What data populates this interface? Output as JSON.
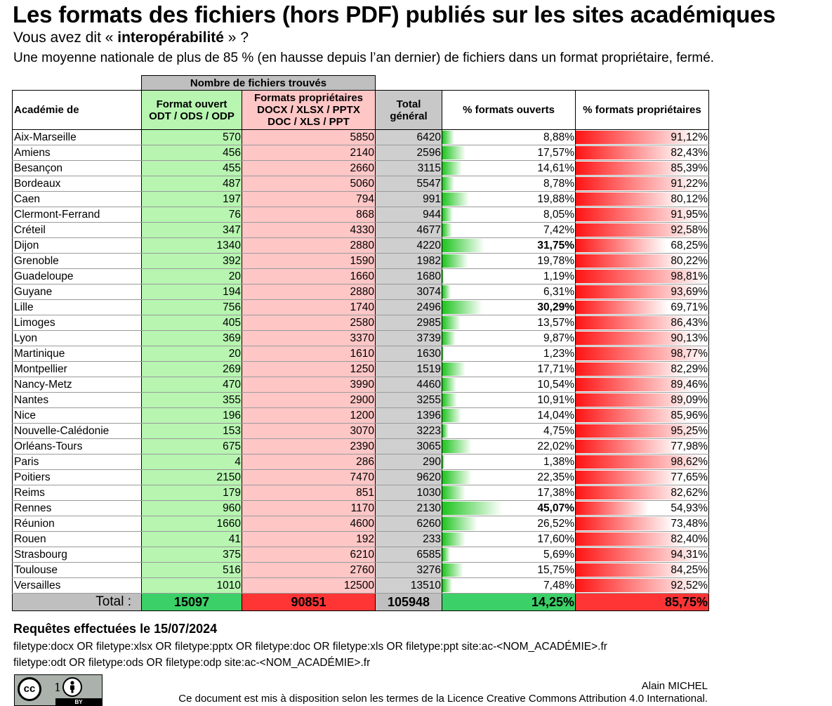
{
  "header": {
    "title": "Les formats des fichiers (hors PDF) publiés sur les sites académiques",
    "subtitle_pre": "Vous avez dit « ",
    "subtitle_bold": "interopérabilité",
    "subtitle_post": " » ?",
    "description": "Une moyenne nationale de plus de 85 % (en hausse depuis l’an dernier) de fichiers dans un format propriétaire, fermé."
  },
  "table": {
    "group_header": "Nombre de fichiers trouvés",
    "columns": {
      "academie": "Académie de",
      "open_1": "Format ouvert",
      "open_2": "ODT / ODS / ODP",
      "prop_1": "Formats propriétaires",
      "prop_2": "DOCX / XLSX / PPTX",
      "prop_3": "DOC / XLS / PPT",
      "total_1": "Total",
      "total_2": "général",
      "pct_open": "% formats ouverts",
      "pct_prop": "% formats propriétaires"
    },
    "rows": [
      {
        "name": "Aix-Marseille",
        "open": "570",
        "prop": "5850",
        "total": "6420",
        "pct_open": "8,88%",
        "pct_prop": "91,12%",
        "open_frac": 0.0888,
        "prop_frac": 0.9112,
        "highlight": false
      },
      {
        "name": "Amiens",
        "open": "456",
        "prop": "2140",
        "total": "2596",
        "pct_open": "17,57%",
        "pct_prop": "82,43%",
        "open_frac": 0.1757,
        "prop_frac": 0.8243,
        "highlight": false
      },
      {
        "name": "Besançon",
        "open": "455",
        "prop": "2660",
        "total": "3115",
        "pct_open": "14,61%",
        "pct_prop": "85,39%",
        "open_frac": 0.1461,
        "prop_frac": 0.8539,
        "highlight": false
      },
      {
        "name": "Bordeaux",
        "open": "487",
        "prop": "5060",
        "total": "5547",
        "pct_open": "8,78%",
        "pct_prop": "91,22%",
        "open_frac": 0.0878,
        "prop_frac": 0.9122,
        "highlight": false
      },
      {
        "name": "Caen",
        "open": "197",
        "prop": "794",
        "total": "991",
        "pct_open": "19,88%",
        "pct_prop": "80,12%",
        "open_frac": 0.1988,
        "prop_frac": 0.8012,
        "highlight": false
      },
      {
        "name": "Clermont-Ferrand",
        "open": "76",
        "prop": "868",
        "total": "944",
        "pct_open": "8,05%",
        "pct_prop": "91,95%",
        "open_frac": 0.0805,
        "prop_frac": 0.9195,
        "highlight": false
      },
      {
        "name": "Créteil",
        "open": "347",
        "prop": "4330",
        "total": "4677",
        "pct_open": "7,42%",
        "pct_prop": "92,58%",
        "open_frac": 0.0742,
        "prop_frac": 0.9258,
        "highlight": false
      },
      {
        "name": "Dijon",
        "open": "1340",
        "prop": "2880",
        "total": "4220",
        "pct_open": "31,75%",
        "pct_prop": "68,25%",
        "open_frac": 0.3175,
        "prop_frac": 0.6825,
        "highlight": true
      },
      {
        "name": "Grenoble",
        "open": "392",
        "prop": "1590",
        "total": "1982",
        "pct_open": "19,78%",
        "pct_prop": "80,22%",
        "open_frac": 0.1978,
        "prop_frac": 0.8022,
        "highlight": false
      },
      {
        "name": "Guadeloupe",
        "open": "20",
        "prop": "1660",
        "total": "1680",
        "pct_open": "1,19%",
        "pct_prop": "98,81%",
        "open_frac": 0.0119,
        "prop_frac": 0.9881,
        "highlight": false
      },
      {
        "name": "Guyane",
        "open": "194",
        "prop": "2880",
        "total": "3074",
        "pct_open": "6,31%",
        "pct_prop": "93,69%",
        "open_frac": 0.0631,
        "prop_frac": 0.9369,
        "highlight": false
      },
      {
        "name": "Lille",
        "open": "756",
        "prop": "1740",
        "total": "2496",
        "pct_open": "30,29%",
        "pct_prop": "69,71%",
        "open_frac": 0.3029,
        "prop_frac": 0.6971,
        "highlight": true
      },
      {
        "name": "Limoges",
        "open": "405",
        "prop": "2580",
        "total": "2985",
        "pct_open": "13,57%",
        "pct_prop": "86,43%",
        "open_frac": 0.1357,
        "prop_frac": 0.8643,
        "highlight": false
      },
      {
        "name": "Lyon",
        "open": "369",
        "prop": "3370",
        "total": "3739",
        "pct_open": "9,87%",
        "pct_prop": "90,13%",
        "open_frac": 0.0987,
        "prop_frac": 0.9013,
        "highlight": false
      },
      {
        "name": "Martinique",
        "open": "20",
        "prop": "1610",
        "total": "1630",
        "pct_open": "1,23%",
        "pct_prop": "98,77%",
        "open_frac": 0.0123,
        "prop_frac": 0.9877,
        "highlight": false
      },
      {
        "name": "Montpellier",
        "open": "269",
        "prop": "1250",
        "total": "1519",
        "pct_open": "17,71%",
        "pct_prop": "82,29%",
        "open_frac": 0.1771,
        "prop_frac": 0.8229,
        "highlight": false
      },
      {
        "name": "Nancy-Metz",
        "open": "470",
        "prop": "3990",
        "total": "4460",
        "pct_open": "10,54%",
        "pct_prop": "89,46%",
        "open_frac": 0.1054,
        "prop_frac": 0.8946,
        "highlight": false
      },
      {
        "name": "Nantes",
        "open": "355",
        "prop": "2900",
        "total": "3255",
        "pct_open": "10,91%",
        "pct_prop": "89,09%",
        "open_frac": 0.1091,
        "prop_frac": 0.8909,
        "highlight": false
      },
      {
        "name": "Nice",
        "open": "196",
        "prop": "1200",
        "total": "1396",
        "pct_open": "14,04%",
        "pct_prop": "85,96%",
        "open_frac": 0.1404,
        "prop_frac": 0.8596,
        "highlight": false
      },
      {
        "name": "Nouvelle-Calédonie",
        "open": "153",
        "prop": "3070",
        "total": "3223",
        "pct_open": "4,75%",
        "pct_prop": "95,25%",
        "open_frac": 0.0475,
        "prop_frac": 0.9525,
        "highlight": false
      },
      {
        "name": "Orléans-Tours",
        "open": "675",
        "prop": "2390",
        "total": "3065",
        "pct_open": "22,02%",
        "pct_prop": "77,98%",
        "open_frac": 0.2202,
        "prop_frac": 0.7798,
        "highlight": false
      },
      {
        "name": "Paris",
        "open": "4",
        "prop": "286",
        "total": "290",
        "pct_open": "1,38%",
        "pct_prop": "98,62%",
        "open_frac": 0.0138,
        "prop_frac": 0.9862,
        "highlight": false
      },
      {
        "name": "Poitiers",
        "open": "2150",
        "prop": "7470",
        "total": "9620",
        "pct_open": "22,35%",
        "pct_prop": "77,65%",
        "open_frac": 0.2235,
        "prop_frac": 0.7765,
        "highlight": false
      },
      {
        "name": "Reims",
        "open": "179",
        "prop": "851",
        "total": "1030",
        "pct_open": "17,38%",
        "pct_prop": "82,62%",
        "open_frac": 0.1738,
        "prop_frac": 0.8262,
        "highlight": false
      },
      {
        "name": "Rennes",
        "open": "960",
        "prop": "1170",
        "total": "2130",
        "pct_open": "45,07%",
        "pct_prop": "54,93%",
        "open_frac": 0.4507,
        "prop_frac": 0.5493,
        "highlight": true
      },
      {
        "name": "Réunion",
        "open": "1660",
        "prop": "4600",
        "total": "6260",
        "pct_open": "26,52%",
        "pct_prop": "73,48%",
        "open_frac": 0.2652,
        "prop_frac": 0.7348,
        "highlight": false
      },
      {
        "name": "Rouen",
        "open": "41",
        "prop": "192",
        "total": "233",
        "pct_open": "17,60%",
        "pct_prop": "82,40%",
        "open_frac": 0.176,
        "prop_frac": 0.824,
        "highlight": false
      },
      {
        "name": "Strasbourg",
        "open": "375",
        "prop": "6210",
        "total": "6585",
        "pct_open": "5,69%",
        "pct_prop": "94,31%",
        "open_frac": 0.0569,
        "prop_frac": 0.9431,
        "highlight": false
      },
      {
        "name": "Toulouse",
        "open": "516",
        "prop": "2760",
        "total": "3276",
        "pct_open": "15,75%",
        "pct_prop": "84,25%",
        "open_frac": 0.1575,
        "prop_frac": 0.8425,
        "highlight": false
      },
      {
        "name": "Versailles",
        "open": "1010",
        "prop": "12500",
        "total": "13510",
        "pct_open": "7,48%",
        "pct_prop": "92,52%",
        "open_frac": 0.0748,
        "prop_frac": 0.9252,
        "highlight": false
      }
    ],
    "total": {
      "label": "Total :",
      "open": "15097",
      "prop": "90851",
      "total": "105948",
      "pct_open": "14,25%",
      "pct_prop": "85,75%"
    }
  },
  "queries": {
    "title": "Requêtes effectuées le 15/07/2024",
    "q1": "filetype:docx OR filetype:xlsx OR filetype:pptx OR filetype:doc OR filetype:xls OR filetype:ppt site:ac-<NOM_ACADÉMIE>.fr",
    "q2": "filetype:odt OR filetype:ods OR filetype:odp site:ac-<NOM_ACADÉMIE>.fr"
  },
  "footer": {
    "author": "Alain MICHEL",
    "license": "Ce document est mis à disposition selon les termes de la Licence Creative Commons Attribution 4.0 International.",
    "badge_cc": "cc",
    "badge_by": "BY",
    "badge_one": "1"
  },
  "colors": {
    "open_fill": "#b7f5b1",
    "prop_fill": "#ffc6c6",
    "total_open": "#3cd068",
    "total_prop": "#ff3535",
    "grey": "#bfbfbf"
  },
  "icons": [
    "creative-commons-icon",
    "attribution-icon"
  ]
}
